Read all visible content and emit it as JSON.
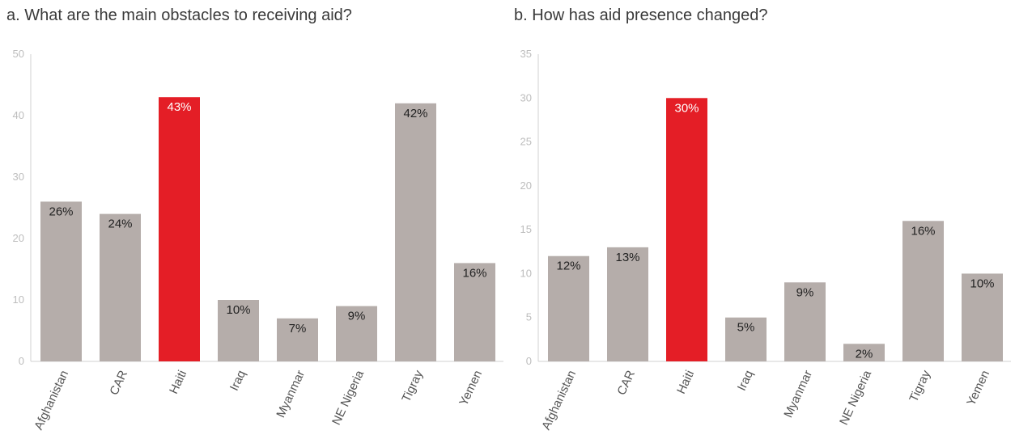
{
  "colors": {
    "bar": "#b5adaa",
    "highlight": "#e41e26",
    "axis": "#d0d0d0",
    "label_dark": "#222222",
    "label_light": "#ffffff"
  },
  "chart_data": [
    {
      "type": "bar",
      "title": "a. What are the main obstacles to receiving aid?",
      "categories": [
        "Afghanistan",
        "CAR",
        "Haiti",
        "Iraq",
        "Myanmar",
        "NE Nigeria",
        "Tigray",
        "Yemen"
      ],
      "values": [
        26,
        24,
        43,
        10,
        7,
        9,
        42,
        16
      ],
      "data_labels": [
        "26%",
        "24%",
        "43%",
        "10%",
        "7%",
        "9%",
        "42%",
        "16%"
      ],
      "highlight": "Haiti",
      "ylim": [
        0,
        50
      ],
      "yticks": [
        0,
        10,
        20,
        30,
        40,
        50
      ],
      "xlabel": "",
      "ylabel": "",
      "grid": false
    },
    {
      "type": "bar",
      "title": "b. How has aid presence changed?",
      "categories": [
        "Afghanistan",
        "CAR",
        "Haiti",
        "Iraq",
        "Myanmar",
        "NE Nigeria",
        "Tigray",
        "Yemen"
      ],
      "values": [
        12,
        13,
        30,
        5,
        9,
        2,
        16,
        10
      ],
      "data_labels": [
        "12%",
        "13%",
        "30%",
        "5%",
        "9%",
        "2%",
        "16%",
        "10%"
      ],
      "highlight": "Haiti",
      "ylim": [
        0,
        35
      ],
      "yticks": [
        0,
        5,
        10,
        15,
        20,
        25,
        30,
        35
      ],
      "xlabel": "",
      "ylabel": "",
      "grid": false
    }
  ]
}
